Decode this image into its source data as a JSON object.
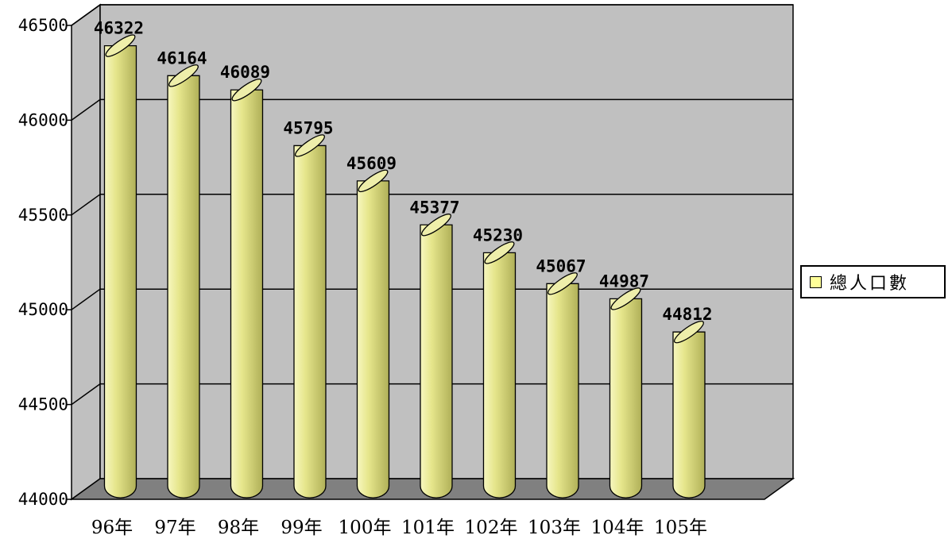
{
  "chart_data": {
    "type": "bar",
    "categories": [
      "96年",
      "97年",
      "98年",
      "99年",
      "100年",
      "101年",
      "102年",
      "103年",
      "104年",
      "105年"
    ],
    "series": [
      {
        "name": "總人口數",
        "values": [
          46322,
          46164,
          46089,
          45795,
          45609,
          45377,
          45230,
          45067,
          44987,
          44812
        ]
      }
    ],
    "data_labels": [
      "46322",
      "46164",
      "46089",
      "45795",
      "45609",
      "45377",
      "45230",
      "45067",
      "44987",
      "44812"
    ],
    "ylim": [
      44000,
      46500
    ],
    "yticks": [
      "44000",
      "44500",
      "45000",
      "45500",
      "46000",
      "46500"
    ],
    "grid": true,
    "legend_position": "right",
    "style": "3d-cylinder"
  },
  "colors": {
    "bar_fill": "#e6e68c",
    "bar_light": "#f4f4b4",
    "bar_dark": "#b8b85c",
    "wall": "#c0c0c0",
    "floor": "#808080",
    "legend_swatch": "#ffff99"
  }
}
